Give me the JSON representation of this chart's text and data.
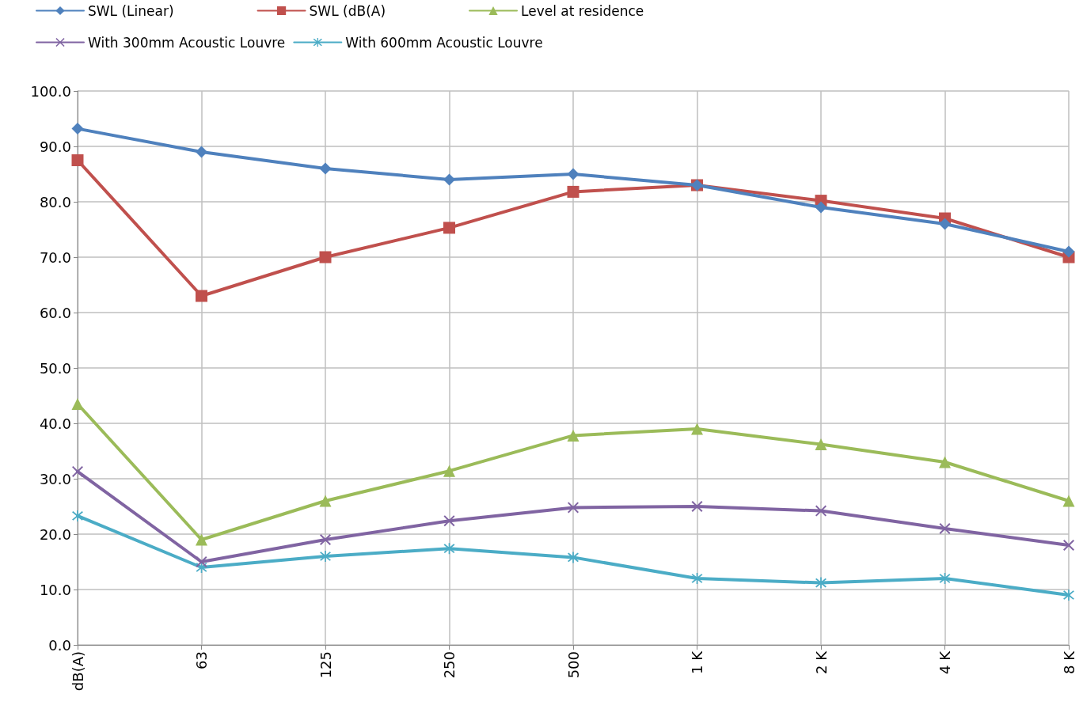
{
  "chart_data": {
    "type": "line",
    "categories": [
      "dB(A)",
      "63",
      "125",
      "250",
      "500",
      "1 K",
      "2 K",
      "4 K",
      "8 K"
    ],
    "series": [
      {
        "name": "SWL (Linear)",
        "color": "#4f81bd",
        "marker": "diamond",
        "values": [
          93.2,
          89,
          86,
          84,
          85,
          83,
          79,
          76,
          71
        ]
      },
      {
        "name": "SWL (dB(A)",
        "color": "#c0504d",
        "marker": "square",
        "values": [
          87.5,
          63,
          70,
          75.3,
          81.8,
          83,
          80.2,
          77,
          70
        ]
      },
      {
        "name": "Level at residence",
        "color": "#9bbb59",
        "marker": "triangle",
        "values": [
          43.5,
          19,
          26,
          31.4,
          37.8,
          39,
          36.2,
          33,
          26
        ]
      },
      {
        "name": "With 300mm Acoustic Louvre",
        "color": "#8064a2",
        "marker": "cross",
        "values": [
          31.3,
          15,
          19,
          22.4,
          24.8,
          25,
          24.2,
          21,
          18
        ]
      },
      {
        "name": "With 600mm Acoustic Louvre",
        "color": "#4bacc6",
        "marker": "star",
        "values": [
          23.3,
          14,
          16,
          17.4,
          15.8,
          12,
          11.2,
          12,
          9
        ]
      }
    ],
    "ylim": [
      0,
      100
    ],
    "yticks": [
      {
        "value": 0,
        "label": "0.0"
      },
      {
        "value": 10,
        "label": "10.0"
      },
      {
        "value": 20,
        "label": "20.0"
      },
      {
        "value": 30,
        "label": "30.0"
      },
      {
        "value": 40,
        "label": "40.0"
      },
      {
        "value": 50,
        "label": "50.0"
      },
      {
        "value": 60,
        "label": "60.0"
      },
      {
        "value": 70,
        "label": "70.0"
      },
      {
        "value": 80,
        "label": "80.0"
      },
      {
        "value": 90,
        "label": "90.0"
      },
      {
        "value": 100,
        "label": "100.0"
      }
    ],
    "grid": true,
    "legend": "top",
    "line_style": "solid"
  }
}
